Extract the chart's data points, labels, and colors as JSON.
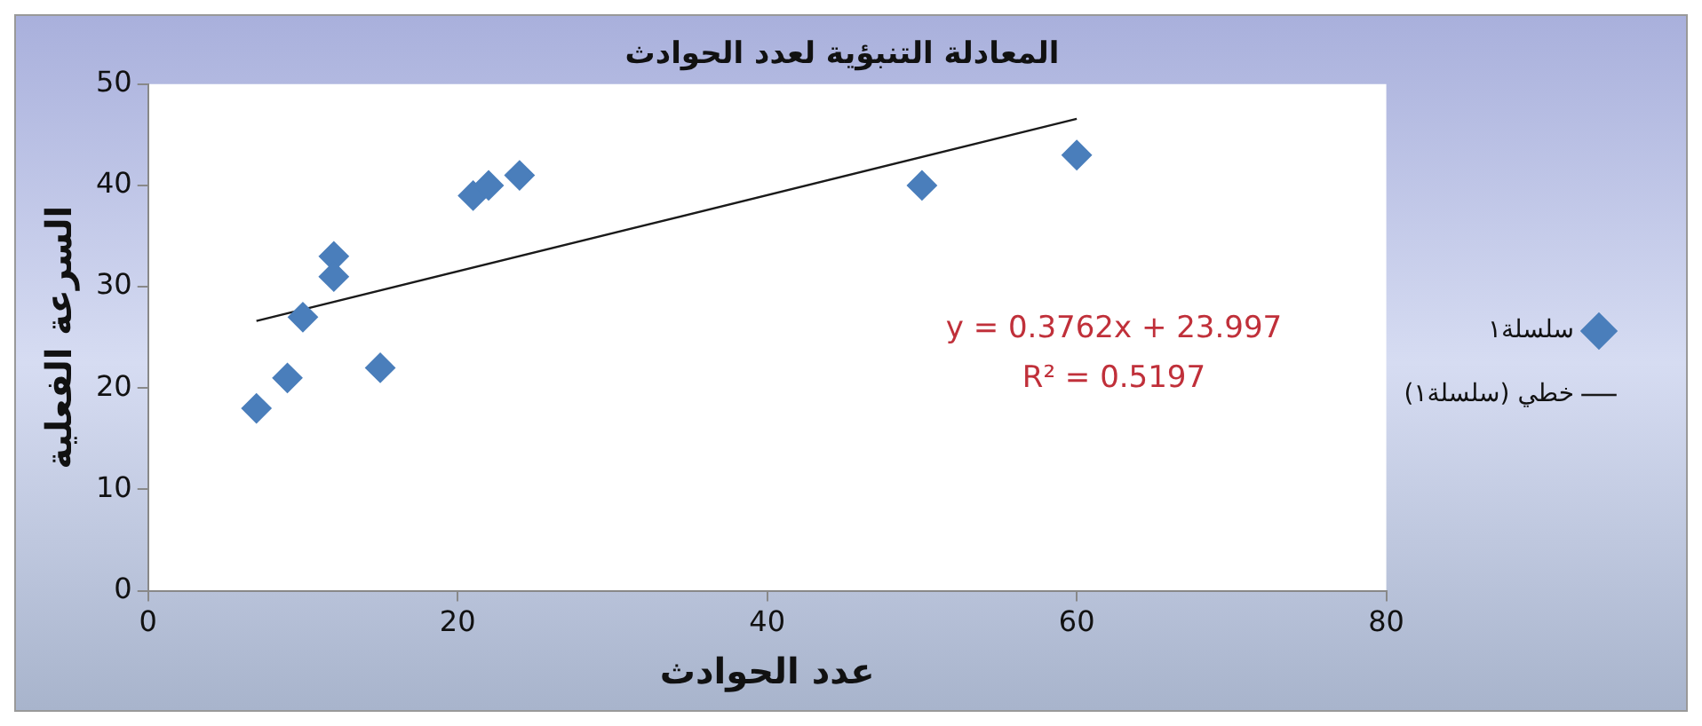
{
  "chart_data": {
    "type": "scatter",
    "title": "المعادلة التنبؤية لعدد الحوادث",
    "xlabel": "عدد الحوادث",
    "ylabel": "السرعة الفعلية",
    "x": [
      7,
      9,
      10,
      12,
      12,
      15,
      21,
      22,
      24,
      50,
      60
    ],
    "series": [
      {
        "name": "سلسلة١",
        "color": "#4a7ebb",
        "values": [
          18,
          21,
          27,
          33,
          31,
          22,
          39,
          40,
          41,
          40,
          43
        ],
        "marker": "diamond"
      },
      {
        "name": "خطي (سلسلة١)",
        "type": "line",
        "color": "#1a1a1a",
        "x": [
          7,
          60
        ],
        "values": [
          26.63,
          46.57
        ],
        "marker": "none"
      }
    ],
    "annotations": [
      "y = 0.3762x + 23.997",
      "R² = 0.5197"
    ],
    "xlim": [
      0,
      80
    ],
    "xticks": [
      0,
      20,
      40,
      60,
      80
    ],
    "ylim": [
      0,
      50
    ],
    "yticks": [
      0,
      10,
      20,
      30,
      40,
      50
    ],
    "grid": false,
    "legend": "right"
  }
}
